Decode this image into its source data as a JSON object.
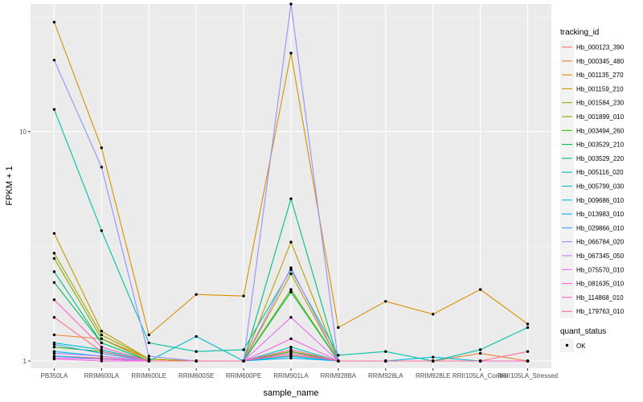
{
  "chart_data": {
    "type": "line",
    "title": "",
    "xlabel": "sample_name",
    "ylabel": "FPKM + 1",
    "y_scale": "log10",
    "ylim": [
      0.93,
      36
    ],
    "y_ticks": [
      1,
      10
    ],
    "y_tick_labels": [
      "1",
      "10"
    ],
    "categories": [
      "PB350LA",
      "RRIM600LA",
      "RRIM600LE",
      "RRIM600SE",
      "RRIM600PE",
      "RRIM901LA",
      "RRIM928BA",
      "RRIM928LA",
      "RRIM928LE",
      "RRII105LA_Control",
      "RRII105LA_Stressed"
    ],
    "category_labels": [
      "PB350LA",
      "RRIM600LA",
      "RRIM600LE",
      "RRIM600SE",
      "RRIM600PE",
      "RRIM901LA",
      "RRIM928BA",
      "RRIM928LA",
      "RRIM928LE",
      "RRII105LA_Control",
      "RRII105LA_Stressed"
    ],
    "legend": {
      "color_title": "tracking_id",
      "shape_title": "quant_status",
      "shape_label": "OK",
      "placement": "right"
    },
    "series": [
      {
        "name": "Hb_000123_390",
        "color": "#F8766D",
        "values": [
          1.05,
          1.03,
          1.0,
          1.0,
          1.0,
          1.06,
          1.0,
          1.0,
          1.0,
          1.0,
          1.0
        ]
      },
      {
        "name": "Hb_000345_480",
        "color": "#EA8331",
        "values": [
          1.3,
          1.25,
          1.02,
          1.0,
          1.0,
          1.1,
          1.0,
          1.0,
          1.0,
          1.08,
          1.0
        ]
      },
      {
        "name": "Hb_001135_270",
        "color": "#D89000",
        "values": [
          30.0,
          8.5,
          1.3,
          1.95,
          1.92,
          22.0,
          1.4,
          1.82,
          1.6,
          2.05,
          1.45
        ]
      },
      {
        "name": "Hb_001159_210",
        "color": "#C09B00",
        "values": [
          3.6,
          1.35,
          1.02,
          1.0,
          1.0,
          3.3,
          1.0,
          1.0,
          1.0,
          1.0,
          1.0
        ]
      },
      {
        "name": "Hb_001584_230",
        "color": "#A3A500",
        "values": [
          2.95,
          1.3,
          1.02,
          1.0,
          1.0,
          2.4,
          1.0,
          1.0,
          1.0,
          1.0,
          1.0
        ]
      },
      {
        "name": "Hb_001899_010",
        "color": "#7CAE00",
        "values": [
          2.8,
          1.25,
          1.0,
          1.0,
          1.0,
          2.05,
          1.0,
          1.0,
          1.0,
          1.0,
          1.0
        ]
      },
      {
        "name": "Hb_003494_260",
        "color": "#39B600",
        "values": [
          1.15,
          1.1,
          1.0,
          1.0,
          1.0,
          1.1,
          1.0,
          1.0,
          1.0,
          1.0,
          1.0
        ]
      },
      {
        "name": "Hb_003529_210",
        "color": "#00BB4E",
        "values": [
          2.2,
          1.2,
          1.0,
          1.0,
          1.0,
          2.0,
          1.0,
          1.0,
          1.0,
          1.0,
          1.0
        ]
      },
      {
        "name": "Hb_003529_220",
        "color": "#00BF7D",
        "values": [
          2.45,
          1.2,
          1.0,
          1.0,
          1.0,
          5.1,
          1.0,
          1.0,
          1.0,
          1.0,
          1.0
        ]
      },
      {
        "name": "Hb_005116_020",
        "color": "#00C1A3",
        "values": [
          12.5,
          3.7,
          1.2,
          1.1,
          1.12,
          2.5,
          1.06,
          1.1,
          1.0,
          1.12,
          1.4
        ]
      },
      {
        "name": "Hb_005799_030",
        "color": "#00BFC4",
        "values": [
          1.2,
          1.12,
          1.0,
          1.28,
          1.0,
          1.15,
          1.0,
          1.0,
          1.0,
          1.0,
          1.0
        ]
      },
      {
        "name": "Hb_009686_010",
        "color": "#00BAE0",
        "values": [
          1.1,
          1.05,
          1.0,
          1.0,
          1.0,
          1.05,
          1.0,
          1.0,
          1.04,
          1.0,
          1.0
        ]
      },
      {
        "name": "Hb_013983_010",
        "color": "#00B0F6",
        "values": [
          1.05,
          1.02,
          1.0,
          1.0,
          1.0,
          1.03,
          1.0,
          1.0,
          1.0,
          1.0,
          1.0
        ]
      },
      {
        "name": "Hb_029866_010",
        "color": "#35A2FF",
        "values": [
          1.18,
          1.08,
          1.0,
          1.0,
          1.0,
          1.08,
          1.0,
          1.0,
          1.0,
          1.0,
          1.0
        ]
      },
      {
        "name": "Hb_066784_020",
        "color": "#9590FF",
        "values": [
          20.5,
          7.0,
          1.05,
          1.0,
          1.0,
          36.0,
          1.0,
          1.0,
          1.0,
          1.0,
          1.0
        ]
      },
      {
        "name": "Hb_067345_050",
        "color": "#C77CFF",
        "values": [
          1.08,
          1.05,
          1.0,
          1.0,
          1.0,
          2.55,
          1.0,
          1.0,
          1.0,
          1.0,
          1.0
        ]
      },
      {
        "name": "Hb_075570_010",
        "color": "#E76BF3",
        "values": [
          1.03,
          1.02,
          1.0,
          1.0,
          1.0,
          1.55,
          1.0,
          1.0,
          1.0,
          1.0,
          1.0
        ]
      },
      {
        "name": "Hb_081635_010",
        "color": "#FA62DB",
        "values": [
          1.02,
          1.0,
          1.0,
          1.0,
          1.0,
          1.25,
          1.0,
          1.0,
          1.0,
          1.0,
          1.0
        ]
      },
      {
        "name": "Hb_114868_010",
        "color": "#FF62BC",
        "values": [
          1.85,
          1.15,
          1.0,
          1.0,
          1.0,
          1.08,
          1.0,
          1.0,
          1.0,
          1.0,
          1.0
        ]
      },
      {
        "name": "Hb_179763_010",
        "color": "#FF6C91",
        "values": [
          1.55,
          1.1,
          1.0,
          1.0,
          1.0,
          1.12,
          1.0,
          1.0,
          1.0,
          1.0,
          1.1
        ]
      }
    ]
  }
}
